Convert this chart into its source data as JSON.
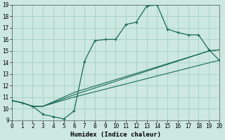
{
  "title": "",
  "xlabel": "Humidex (Indice chaleur)",
  "xlim": [
    0,
    20
  ],
  "ylim": [
    9,
    19
  ],
  "xticks": [
    0,
    1,
    2,
    3,
    4,
    5,
    6,
    7,
    8,
    9,
    10,
    11,
    12,
    13,
    14,
    15,
    16,
    17,
    18,
    19,
    20
  ],
  "yticks": [
    9,
    10,
    11,
    12,
    13,
    14,
    15,
    16,
    17,
    18,
    19
  ],
  "bg_color": "#cce8e0",
  "grid_color": "#aad4c8",
  "line_color": "#1a6b5a",
  "line1": {
    "x": [
      0,
      1,
      2,
      3,
      4,
      5,
      6,
      7,
      8,
      9,
      10,
      11,
      12,
      13,
      14,
      15,
      16,
      17,
      18,
      19,
      20
    ],
    "y": [
      10.7,
      10.5,
      10.2,
      9.5,
      9.3,
      9.1,
      9.8,
      14.1,
      15.9,
      16.0,
      16.0,
      17.3,
      17.5,
      18.9,
      19.0,
      16.9,
      16.6,
      16.4,
      16.4,
      15.1,
      14.2
    ]
  },
  "line2": {
    "x": [
      0,
      1,
      2,
      3,
      6,
      20
    ],
    "y": [
      10.7,
      10.5,
      10.2,
      10.2,
      11.0,
      14.2
    ]
  },
  "line3": {
    "x": [
      0,
      1,
      2,
      3,
      6,
      19,
      20
    ],
    "y": [
      10.7,
      10.5,
      10.2,
      10.2,
      11.2,
      15.0,
      15.1
    ]
  },
  "line4": {
    "x": [
      0,
      1,
      2,
      3,
      6,
      19,
      20
    ],
    "y": [
      10.7,
      10.5,
      10.2,
      10.2,
      11.4,
      15.0,
      15.1
    ]
  }
}
